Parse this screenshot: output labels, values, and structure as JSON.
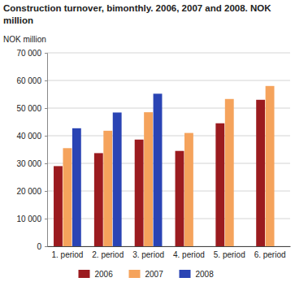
{
  "chart_data": {
    "type": "bar",
    "title": "Construction turnover, bimonthly. 2006, 2007 and 2008. NOK million",
    "y_label": "NOK million",
    "categories": [
      "1. period",
      "2. period",
      "3. period",
      "4. period",
      "5. period",
      "6. period"
    ],
    "series": [
      {
        "name": "2006",
        "color": "#9b1b1f",
        "values": [
          29000,
          33700,
          38600,
          34500,
          44500,
          53000
        ]
      },
      {
        "name": "2007",
        "color": "#f5a35c",
        "values": [
          35500,
          41800,
          48500,
          41000,
          53300,
          58000
        ]
      },
      {
        "name": "2008",
        "color": "#2a44b4",
        "values": [
          42700,
          48400,
          55200,
          null,
          null,
          null
        ]
      }
    ],
    "ylim": [
      0,
      70000
    ],
    "yticks": [
      0,
      {
        "value": 10000,
        "label": "10 000"
      },
      {
        "value": 20000,
        "label": "20 000"
      },
      {
        "value": 30000,
        "label": "30 000"
      },
      {
        "value": 40000,
        "label": "40 000"
      },
      {
        "value": 50000,
        "label": "50 000"
      },
      {
        "value": 60000,
        "label": "60 000"
      },
      {
        "value": 70000,
        "label": "70 000"
      }
    ],
    "grid": true,
    "legend": "bottom"
  }
}
